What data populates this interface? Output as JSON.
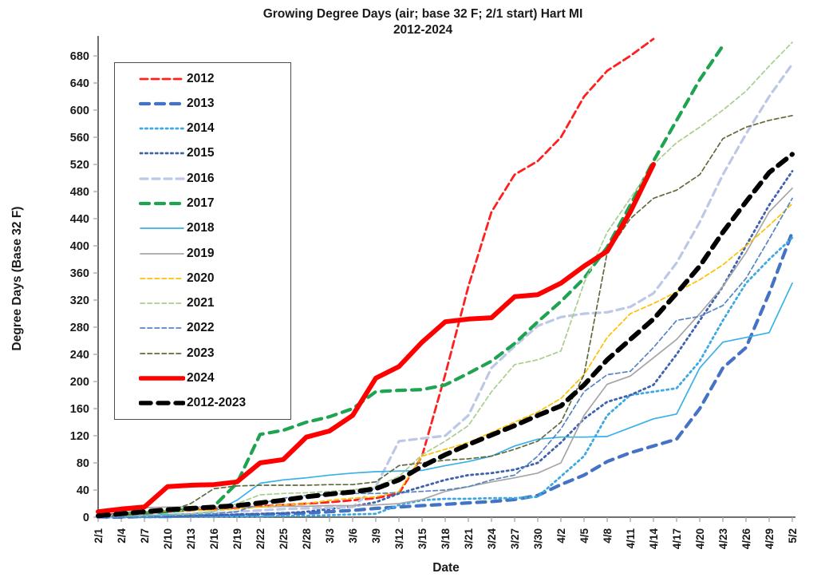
{
  "title": {
    "line1": "Growing Degree Days (air; base 32 F; 2/1 start) Hart MI",
    "line2": "2012-2024"
  },
  "axes": {
    "x_label": "Date",
    "y_label": "Degree Days (Base 32 F)",
    "y_min": 0,
    "y_max": 680,
    "y_tick_step": 40,
    "y_ticks": [
      0,
      40,
      80,
      120,
      160,
      200,
      240,
      280,
      320,
      360,
      400,
      440,
      480,
      520,
      560,
      600,
      640,
      680
    ],
    "x_tick_labels": [
      "2/1",
      "2/4",
      "2/7",
      "2/10",
      "2/13",
      "2/16",
      "2/19",
      "2/22",
      "2/25",
      "2/28",
      "3/3",
      "3/6",
      "3/9",
      "3/12",
      "3/15",
      "3/18",
      "3/21",
      "3/24",
      "3/27",
      "3/30",
      "4/2",
      "4/5",
      "4/8",
      "4/11",
      "4/14",
      "4/17",
      "4/20",
      "4/23",
      "4/26",
      "4/29",
      "5/2"
    ]
  },
  "chart_data": {
    "type": "line",
    "title": "Growing Degree Days (air; base 32 F; 2/1 start) Hart MI 2012-2024",
    "xlabel": "Date",
    "ylabel": "Degree Days (Base 32 F)",
    "ylim": [
      0,
      700
    ],
    "grid": false,
    "legend_position": "upper-left",
    "categories": [
      "2/1",
      "2/4",
      "2/7",
      "2/10",
      "2/13",
      "2/16",
      "2/19",
      "2/22",
      "2/25",
      "2/28",
      "3/3",
      "3/6",
      "3/9",
      "3/12",
      "3/15",
      "3/18",
      "3/21",
      "3/24",
      "3/27",
      "3/30",
      "4/2",
      "4/5",
      "4/8",
      "4/11",
      "4/14",
      "4/17",
      "4/20",
      "4/23",
      "4/26",
      "4/29",
      "5/2"
    ],
    "series": [
      {
        "name": "2012",
        "color": "#ff1f1f",
        "style": "dashed",
        "weight": "medium",
        "values": [
          3,
          5,
          6,
          8,
          10,
          12,
          14,
          16,
          18,
          20,
          22,
          25,
          28,
          35,
          90,
          210,
          340,
          450,
          505,
          525,
          560,
          620,
          658,
          680,
          705,
          null,
          null,
          null,
          null,
          null,
          null
        ]
      },
      {
        "name": "2013",
        "color": "#4472c4",
        "style": "dashed",
        "weight": "thick",
        "values": [
          0,
          0,
          1,
          1,
          2,
          2,
          3,
          4,
          5,
          6,
          8,
          10,
          13,
          15,
          17,
          19,
          21,
          23,
          26,
          32,
          48,
          62,
          82,
          95,
          105,
          115,
          160,
          220,
          250,
          330,
          420
        ]
      },
      {
        "name": "2014",
        "color": "#3fa8e0",
        "style": "dotted",
        "weight": "medium",
        "values": [
          0,
          0,
          0,
          0,
          1,
          1,
          1,
          1,
          2,
          2,
          3,
          4,
          5,
          18,
          25,
          27,
          27,
          28,
          28,
          30,
          60,
          90,
          150,
          180,
          185,
          190,
          230,
          290,
          345,
          380,
          412
        ]
      },
      {
        "name": "2015",
        "color": "#4062ae",
        "style": "dotted",
        "weight": "medium",
        "values": [
          0,
          0,
          1,
          1,
          2,
          3,
          4,
          5,
          6,
          8,
          12,
          16,
          22,
          35,
          45,
          55,
          62,
          65,
          70,
          80,
          110,
          145,
          170,
          180,
          195,
          240,
          290,
          340,
          400,
          460,
          510
        ]
      },
      {
        "name": "2016",
        "color": "#bcc8e6",
        "style": "dashed",
        "weight": "semi",
        "values": [
          0,
          1,
          2,
          3,
          5,
          6,
          8,
          10,
          12,
          13,
          14,
          15,
          45,
          112,
          116,
          120,
          150,
          220,
          252,
          282,
          295,
          300,
          302,
          310,
          330,
          375,
          435,
          505,
          565,
          620,
          668
        ]
      },
      {
        "name": "2017",
        "color": "#1ea351",
        "style": "dashed",
        "weight": "thick",
        "values": [
          2,
          4,
          6,
          8,
          12,
          16,
          50,
          122,
          128,
          140,
          148,
          160,
          185,
          187,
          188,
          195,
          212,
          230,
          256,
          288,
          318,
          352,
          398,
          460,
          525,
          585,
          645,
          695,
          null,
          null,
          null
        ]
      },
      {
        "name": "2018",
        "color": "#38b0e8",
        "style": "solid",
        "weight": "thin",
        "values": [
          0,
          1,
          2,
          4,
          5,
          8,
          25,
          50,
          55,
          58,
          62,
          65,
          67,
          68,
          69,
          76,
          82,
          90,
          105,
          115,
          118,
          118,
          119,
          132,
          145,
          152,
          220,
          258,
          265,
          272,
          345
        ]
      },
      {
        "name": "2019",
        "color": "#a6a6a6",
        "style": "solid",
        "weight": "thin",
        "values": [
          0,
          5,
          14,
          15,
          15,
          15,
          15,
          15,
          16,
          16,
          17,
          17,
          18,
          20,
          26,
          38,
          45,
          52,
          58,
          65,
          80,
          150,
          196,
          208,
          235,
          262,
          300,
          340,
          390,
          450,
          485
        ]
      },
      {
        "name": "2020",
        "color": "#ffc000",
        "style": "dashed",
        "weight": "thin",
        "values": [
          0,
          3,
          6,
          9,
          10,
          10,
          12,
          15,
          18,
          20,
          25,
          28,
          30,
          38,
          90,
          100,
          110,
          125,
          140,
          155,
          175,
          210,
          265,
          300,
          315,
          332,
          350,
          372,
          400,
          430,
          462
        ]
      },
      {
        "name": "2021",
        "color": "#a9ce8e",
        "style": "dashed",
        "weight": "thin",
        "values": [
          0,
          1,
          2,
          3,
          5,
          8,
          20,
          33,
          35,
          36,
          38,
          40,
          45,
          60,
          92,
          112,
          135,
          185,
          225,
          232,
          245,
          345,
          420,
          470,
          520,
          552,
          575,
          600,
          628,
          665,
          700
        ]
      },
      {
        "name": "2022",
        "color": "#5585c2",
        "style": "dashed",
        "weight": "thin",
        "values": [
          0,
          0,
          1,
          2,
          3,
          5,
          8,
          20,
          28,
          32,
          33,
          35,
          35,
          36,
          38,
          40,
          45,
          55,
          62,
          90,
          130,
          185,
          210,
          215,
          250,
          290,
          296,
          312,
          352,
          410,
          470
        ]
      },
      {
        "name": "2023",
        "color": "#5e6b3c",
        "style": "dashed",
        "weight": "thin",
        "values": [
          0,
          3,
          5,
          8,
          20,
          42,
          46,
          47,
          47,
          47,
          48,
          48,
          52,
          76,
          80,
          84,
          86,
          90,
          100,
          112,
          140,
          210,
          390,
          440,
          470,
          482,
          505,
          558,
          575,
          585,
          592
        ]
      },
      {
        "name": "2024",
        "color": "#fe0000",
        "style": "solid",
        "weight": "xthick",
        "values": [
          8,
          12,
          15,
          45,
          47,
          48,
          52,
          80,
          85,
          118,
          127,
          150,
          205,
          222,
          258,
          288,
          292,
          294,
          325,
          328,
          345,
          370,
          392,
          450,
          520,
          null,
          null,
          null,
          null,
          null,
          null
        ]
      },
      {
        "name": "2012-2023",
        "color": "#000000",
        "style": "dashed",
        "weight": "xthick",
        "values": [
          2,
          5,
          8,
          11,
          13,
          15,
          17,
          21,
          25,
          30,
          34,
          37,
          42,
          55,
          75,
          92,
          107,
          121,
          135,
          150,
          164,
          195,
          232,
          262,
          292,
          330,
          370,
          420,
          465,
          508,
          535
        ]
      }
    ]
  },
  "colors": {
    "axis_line": "#404040",
    "tick_mark": "#a6a6a6",
    "text": "#1a1a1a",
    "legend_border": "#4d4d4d"
  }
}
